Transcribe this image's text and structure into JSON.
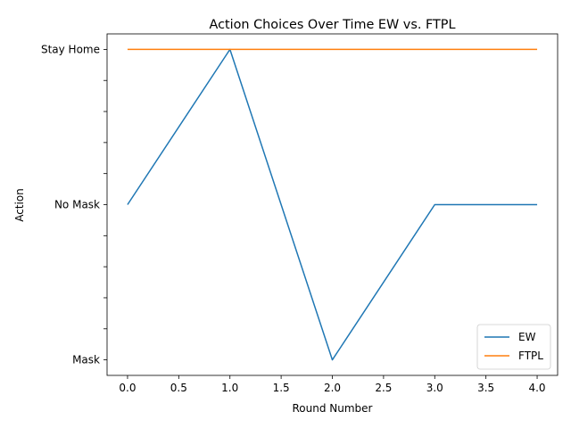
{
  "chart_data": {
    "type": "line",
    "title": "Action Choices Over Time EW vs. FTPL",
    "xlabel": "Round Number",
    "ylabel": "Action",
    "x": [
      0,
      1,
      2,
      3,
      4
    ],
    "xlim": [
      -0.2,
      4.2
    ],
    "ylim": [
      -0.1,
      1.9
    ],
    "x_ticks": [
      "0.0",
      "0.5",
      "1.0",
      "1.5",
      "2.0",
      "2.5",
      "3.0",
      "3.5",
      "4.0"
    ],
    "y_ticks": [
      {
        "value": 0,
        "label": "Mask"
      },
      {
        "value": 0.2,
        "label": ""
      },
      {
        "value": 0.4,
        "label": ""
      },
      {
        "value": 0.6,
        "label": ""
      },
      {
        "value": 0.8,
        "label": ""
      },
      {
        "value": 1,
        "label": "No Mask"
      },
      {
        "value": 1.2,
        "label": ""
      },
      {
        "value": 1.4,
        "label": ""
      },
      {
        "value": 1.6,
        "label": ""
      },
      {
        "value": 1.8,
        "label": ""
      },
      {
        "value": 2,
        "label": "Stay Home"
      }
    ],
    "series": [
      {
        "name": "EW",
        "values": [
          1,
          2,
          0,
          1,
          1
        ],
        "color": "#1f77b4"
      },
      {
        "name": "FTPL",
        "values": [
          2,
          2,
          2,
          2,
          2
        ],
        "color": "#ff7f0e"
      }
    ],
    "grid": false,
    "legend_position": "lower-right"
  }
}
